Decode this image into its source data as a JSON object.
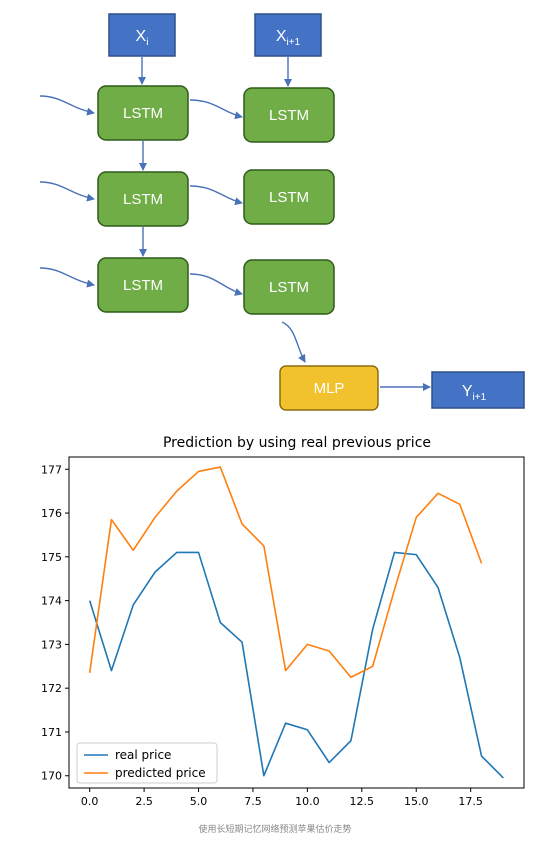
{
  "diagram": {
    "inputs": [
      {
        "base": "X",
        "sub": "i"
      },
      {
        "base": "X",
        "sub": "i+1"
      }
    ],
    "lstm_label": "LSTM",
    "mlp_label": "MLP",
    "output": {
      "base": "Y",
      "sub": "i+1"
    },
    "colors": {
      "input_box": "#4472c4",
      "lstm_box": "#70ad47",
      "mlp_box": "#f2c12e",
      "arrow": "#4a72b8"
    }
  },
  "caption": "使用长短期记忆网络预测苹果估价走势",
  "chart_data": {
    "type": "line",
    "title": "Prediction by using real previous price",
    "xlabel": "",
    "ylabel": "",
    "xlim": [
      -0.95,
      19.95
    ],
    "ylim": [
      169.72,
      177.28
    ],
    "xticks": [
      0.0,
      2.5,
      5.0,
      7.5,
      10.0,
      12.5,
      15.0,
      17.5
    ],
    "xtick_labels": [
      "0.0",
      "2.5",
      "5.0",
      "7.5",
      "10.0",
      "12.5",
      "15.0",
      "17.5"
    ],
    "yticks": [
      170,
      171,
      172,
      173,
      174,
      175,
      176,
      177
    ],
    "ytick_labels": [
      "170",
      "171",
      "172",
      "173",
      "174",
      "175",
      "176",
      "177"
    ],
    "legend_position": "lower-left",
    "series": [
      {
        "name": "real price",
        "color": "#1f77b4",
        "x": [
          0,
          1,
          2,
          3,
          4,
          5,
          6,
          7,
          8,
          9,
          10,
          11,
          12,
          13,
          14,
          15,
          16,
          17,
          18,
          19
        ],
        "y": [
          174.0,
          172.4,
          173.9,
          174.65,
          175.1,
          175.1,
          173.5,
          173.05,
          170.0,
          171.2,
          171.05,
          170.3,
          170.8,
          173.35,
          175.1,
          175.05,
          174.3,
          172.7,
          170.45,
          169.95
        ]
      },
      {
        "name": "predicted price",
        "color": "#ff7f0e",
        "x": [
          0,
          1,
          2,
          3,
          4,
          5,
          6,
          7,
          8,
          9,
          10,
          11,
          12,
          13,
          14,
          15,
          16,
          17,
          18
        ],
        "y": [
          172.35,
          175.85,
          175.15,
          175.9,
          176.5,
          176.95,
          177.05,
          175.75,
          175.25,
          172.4,
          173.0,
          172.85,
          172.25,
          172.5,
          174.25,
          175.9,
          176.45,
          176.2,
          174.85
        ]
      }
    ]
  }
}
